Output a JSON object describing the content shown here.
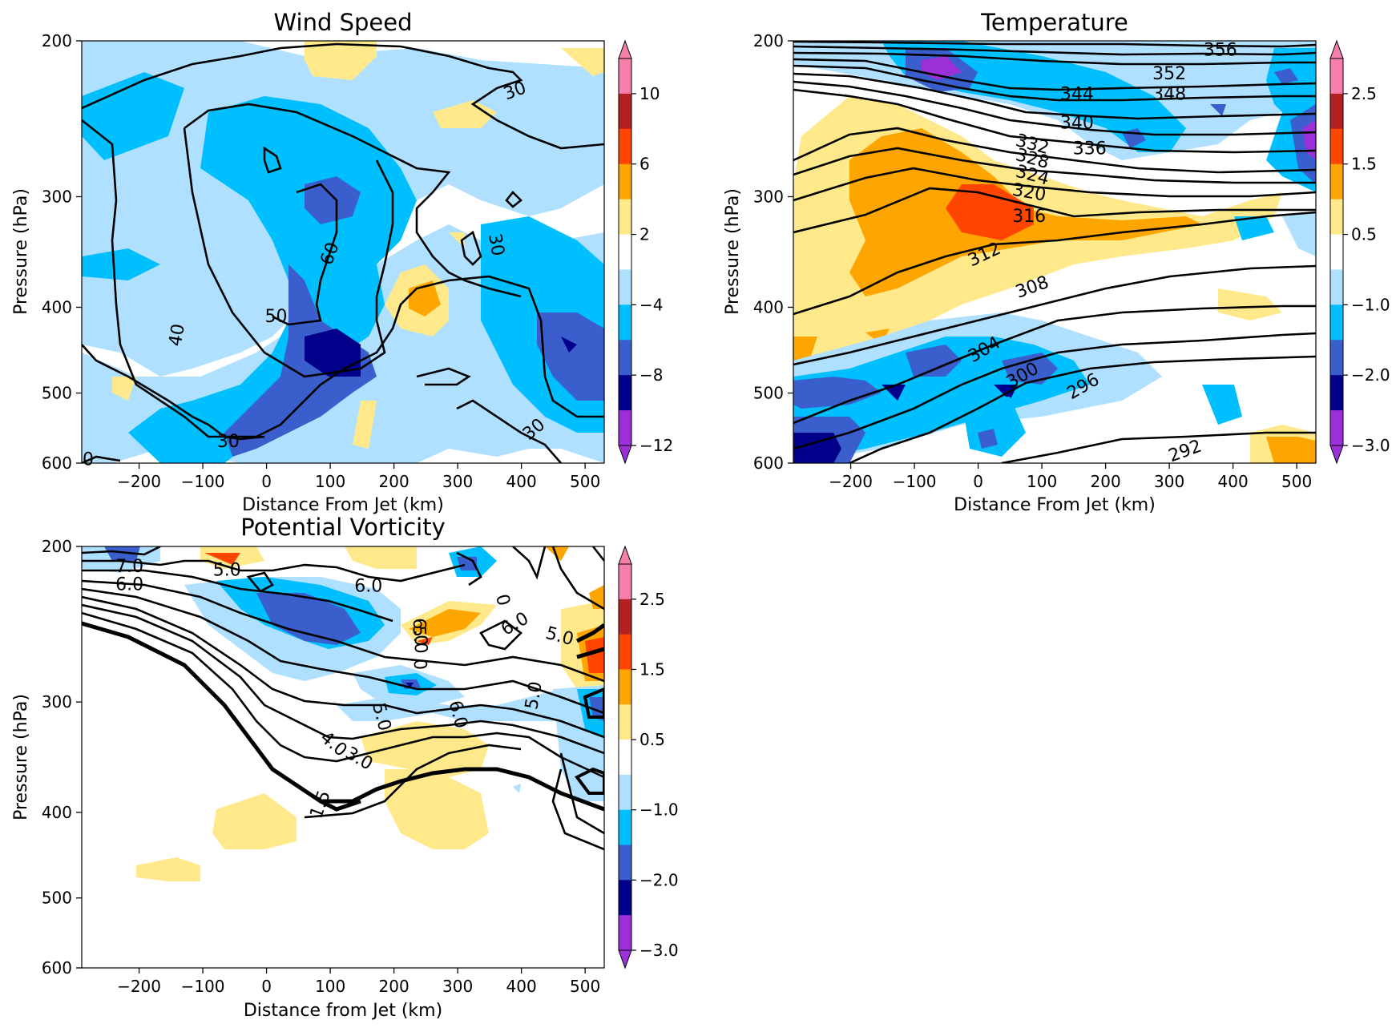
{
  "colors": {
    "anomaly_scale": [
      "#9b30d9",
      "#00008b",
      "#3a5fcd",
      "#00bfff",
      "#b0e0ff",
      "#ffffff",
      "#ffe98a",
      "#ffa500",
      "#ff4500",
      "#b22222",
      "#f77fac"
    ],
    "contour_line": "#000000"
  },
  "chart_data": [
    {
      "type": "contour",
      "title": "Wind Speed",
      "xlabel": "Distance From Jet (km)",
      "ylabel": "Pressure (hPa)",
      "xlim": [
        -290,
        530
      ],
      "ylim": [
        600,
        200
      ],
      "x_ticks": [
        "−200",
        "−100",
        "0",
        "100",
        "200",
        "300",
        "400",
        "500"
      ],
      "x_tick_values": [
        -200,
        -100,
        0,
        100,
        200,
        300,
        400,
        500
      ],
      "y_ticks": [
        "200",
        "300",
        "400",
        "500",
        "600"
      ],
      "y_tick_values": [
        200,
        300,
        400,
        500,
        600
      ],
      "colorbar_ticks": [
        "10",
        "6",
        "2",
        "−4",
        "−8",
        "−12"
      ],
      "colorbar_levels": [
        "−12",
        "−10",
        "−8",
        "−6",
        "−4",
        "−2",
        "2",
        "4",
        "6",
        "8",
        "10",
        "12"
      ],
      "contour_labels": [
        {
          "text": "30",
          "x": 390,
          "y": 228,
          "angle": -20
        },
        {
          "text": "30",
          "x": 360,
          "y": 340,
          "angle": 80
        },
        {
          "text": "30",
          "x": 420,
          "y": 550,
          "angle": -40
        },
        {
          "text": "30",
          "x": -60,
          "y": 568,
          "angle": 0
        },
        {
          "text": "40",
          "x": -140,
          "y": 430,
          "angle": -80
        },
        {
          "text": "50",
          "x": 15,
          "y": 410,
          "angle": 0
        },
        {
          "text": "60",
          "x": 100,
          "y": 348,
          "angle": -70
        },
        {
          "text": "0",
          "x": -280,
          "y": 595,
          "angle": 0
        }
      ]
    },
    {
      "type": "contour",
      "title": "Temperature",
      "xlabel": "Distance From Jet (km)",
      "ylabel": "Pressure (hPa)",
      "xlim": [
        -290,
        530
      ],
      "ylim": [
        600,
        200
      ],
      "x_ticks": [
        "−200",
        "−100",
        "0",
        "100",
        "200",
        "300",
        "400",
        "500"
      ],
      "x_tick_values": [
        -200,
        -100,
        0,
        100,
        200,
        300,
        400,
        500
      ],
      "y_ticks": [
        "200",
        "300",
        "400",
        "500",
        "600"
      ],
      "y_tick_values": [
        200,
        300,
        400,
        500,
        600
      ],
      "colorbar_ticks": [
        "2.5",
        "1.5",
        "0.5",
        "−1.0",
        "−2.0",
        "−3.0"
      ],
      "colorbar_levels": [
        "−3.0",
        "−2.5",
        "−2.0",
        "−1.5",
        "−1.0",
        "−0.5",
        "0.5",
        "1.0",
        "1.5",
        "2.0",
        "2.5",
        "3.0"
      ],
      "contour_labels": [
        {
          "text": "356",
          "x": 380,
          "y": 205,
          "angle": 0
        },
        {
          "text": "352",
          "x": 300,
          "y": 218,
          "angle": 0
        },
        {
          "text": "348",
          "x": 300,
          "y": 230,
          "angle": 0
        },
        {
          "text": "344",
          "x": 155,
          "y": 230,
          "angle": 0
        },
        {
          "text": "340",
          "x": 155,
          "y": 248,
          "angle": 0
        },
        {
          "text": "336",
          "x": 175,
          "y": 265,
          "angle": 0
        },
        {
          "text": "332",
          "x": 85,
          "y": 262,
          "angle": 15
        },
        {
          "text": "328",
          "x": 85,
          "y": 272,
          "angle": 15
        },
        {
          "text": "324",
          "x": 85,
          "y": 284,
          "angle": 15
        },
        {
          "text": "320",
          "x": 80,
          "y": 297,
          "angle": 10
        },
        {
          "text": "316",
          "x": 80,
          "y": 316,
          "angle": 0
        },
        {
          "text": "312",
          "x": 10,
          "y": 349,
          "angle": -25
        },
        {
          "text": "308",
          "x": 85,
          "y": 380,
          "angle": -20
        },
        {
          "text": "304",
          "x": 10,
          "y": 447,
          "angle": -30
        },
        {
          "text": "300",
          "x": 70,
          "y": 478,
          "angle": -30
        },
        {
          "text": "296",
          "x": 165,
          "y": 492,
          "angle": -30
        },
        {
          "text": "292",
          "x": 325,
          "y": 582,
          "angle": -20
        }
      ]
    },
    {
      "type": "contour",
      "title": "Potential Vorticity",
      "xlabel": "Distance from Jet (km)",
      "ylabel": "Pressure (hPa)",
      "xlim": [
        -290,
        530
      ],
      "ylim": [
        600,
        200
      ],
      "x_ticks": [
        "−200",
        "−100",
        "0",
        "100",
        "200",
        "300",
        "400",
        "500"
      ],
      "x_tick_values": [
        -200,
        -100,
        0,
        100,
        200,
        300,
        400,
        500
      ],
      "y_ticks": [
        "200",
        "300",
        "400",
        "500",
        "600"
      ],
      "y_tick_values": [
        200,
        300,
        400,
        500,
        600
      ],
      "colorbar_ticks": [
        "2.5",
        "1.5",
        "0.5",
        "−1.0",
        "−2.0",
        "−3.0"
      ],
      "colorbar_levels": [
        "−3.0",
        "−2.5",
        "−2.0",
        "−1.5",
        "−1.0",
        "−0.5",
        "0.5",
        "1.0",
        "1.5",
        "2.0",
        "2.5",
        "3.0"
      ],
      "contour_labels": [
        {
          "text": "7.0",
          "x": -215,
          "y": 211,
          "angle": 0
        },
        {
          "text": "6.0",
          "x": -215,
          "y": 221,
          "angle": 0
        },
        {
          "text": "5.0",
          "x": -62,
          "y": 213,
          "angle": 0
        },
        {
          "text": "6.0",
          "x": 160,
          "y": 222,
          "angle": 0
        },
        {
          "text": "5.0",
          "x": 240,
          "y": 255,
          "angle": 85
        },
        {
          "text": "0",
          "x": 240,
          "y": 272,
          "angle": 85
        },
        {
          "text": "6.0",
          "x": 240,
          "y": 250,
          "angle": 85
        },
        {
          "text": "0",
          "x": 370,
          "y": 230,
          "angle": 75
        },
        {
          "text": "6.0",
          "x": 390,
          "y": 245,
          "angle": -30
        },
        {
          "text": "5.0",
          "x": 460,
          "y": 253,
          "angle": 15
        },
        {
          "text": "5.0",
          "x": 420,
          "y": 295,
          "angle": -80
        },
        {
          "text": "5.0",
          "x": 180,
          "y": 312,
          "angle": 75
        },
        {
          "text": "6.0",
          "x": 300,
          "y": 310,
          "angle": 75
        },
        {
          "text": "4.0",
          "x": 105,
          "y": 335,
          "angle": 40
        },
        {
          "text": "3.0",
          "x": 145,
          "y": 348,
          "angle": 30
        },
        {
          "text": "1.5",
          "x": 85,
          "y": 392,
          "angle": -70
        }
      ]
    }
  ]
}
